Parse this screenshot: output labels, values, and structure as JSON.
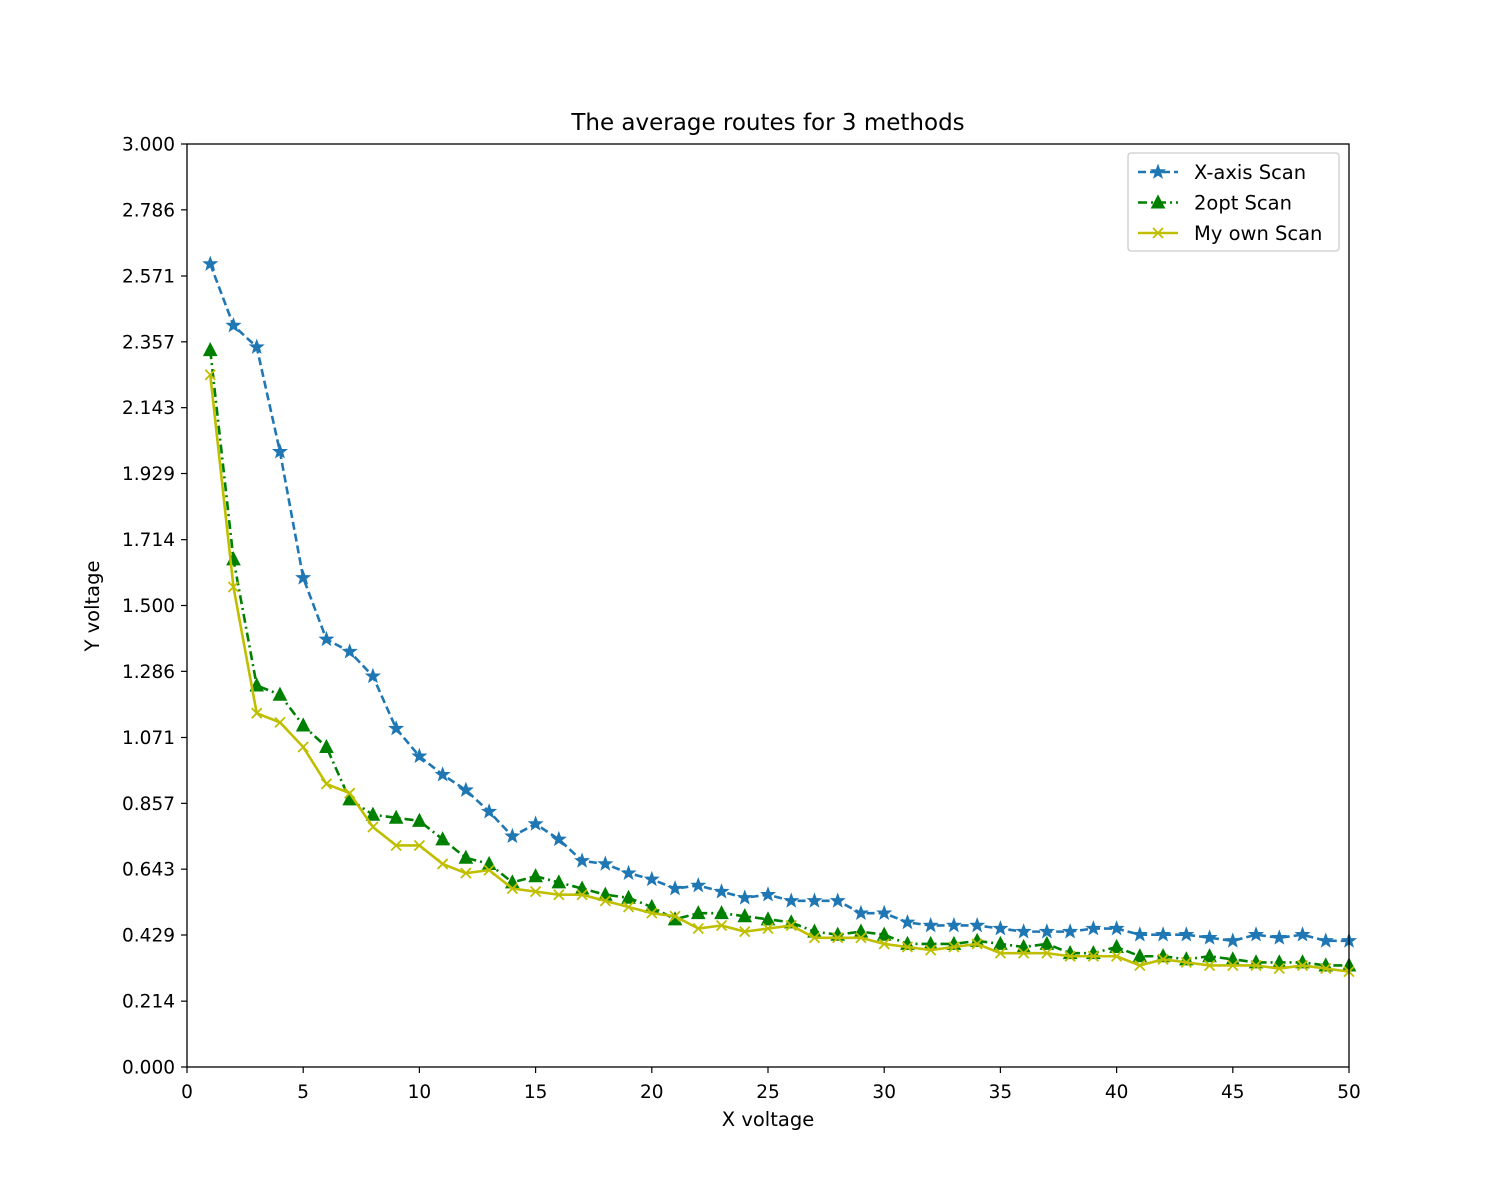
{
  "chart_data": {
    "type": "line",
    "title": "The average routes for 3 methods",
    "xlabel": "X voltage",
    "ylabel": "Y voltage",
    "xlim": [
      0,
      50
    ],
    "ylim": [
      0,
      3.0
    ],
    "x_ticks": [
      0,
      5,
      10,
      15,
      20,
      25,
      30,
      35,
      40,
      45,
      50
    ],
    "x_tick_labels": [
      "0",
      "5",
      "10",
      "15",
      "20",
      "25",
      "30",
      "35",
      "40",
      "45",
      "50"
    ],
    "y_ticks": [
      0,
      0.214,
      0.429,
      0.643,
      0.857,
      1.071,
      1.286,
      1.5,
      1.714,
      1.929,
      2.143,
      2.357,
      2.571,
      2.786,
      3.0
    ],
    "y_tick_labels": [
      "0.000",
      "0.214",
      "0.429",
      "0.643",
      "0.857",
      "1.071",
      "1.286",
      "1.500",
      "1.714",
      "1.929",
      "2.143",
      "2.357",
      "2.571",
      "2.786",
      "3.000"
    ],
    "grid": false,
    "legend_position": "top-right",
    "x": [
      1,
      2,
      3,
      4,
      5,
      6,
      7,
      8,
      9,
      10,
      11,
      12,
      13,
      14,
      15,
      16,
      17,
      18,
      19,
      20,
      21,
      22,
      23,
      24,
      25,
      26,
      27,
      28,
      29,
      30,
      31,
      32,
      33,
      34,
      35,
      36,
      37,
      38,
      39,
      40,
      41,
      42,
      43,
      44,
      45,
      46,
      47,
      48,
      49,
      50
    ],
    "series": [
      {
        "name": "X-axis Scan",
        "color": "#1f77b4",
        "linestyle": "dashed",
        "marker": "star",
        "values": [
          2.61,
          2.41,
          2.34,
          2.0,
          1.59,
          1.39,
          1.35,
          1.27,
          1.1,
          1.01,
          0.95,
          0.9,
          0.83,
          0.75,
          0.79,
          0.74,
          0.67,
          0.66,
          0.63,
          0.61,
          0.58,
          0.59,
          0.57,
          0.55,
          0.56,
          0.54,
          0.54,
          0.54,
          0.5,
          0.5,
          0.47,
          0.46,
          0.46,
          0.46,
          0.45,
          0.44,
          0.44,
          0.44,
          0.45,
          0.45,
          0.43,
          0.43,
          0.43,
          0.42,
          0.41,
          0.43,
          0.42,
          0.43,
          0.41,
          0.41
        ]
      },
      {
        "name": "2opt Scan",
        "color": "#008000",
        "linestyle": "dashdot",
        "marker": "triangle",
        "values": [
          2.33,
          1.65,
          1.24,
          1.21,
          1.11,
          1.04,
          0.87,
          0.82,
          0.81,
          0.8,
          0.74,
          0.68,
          0.66,
          0.6,
          0.62,
          0.6,
          0.58,
          0.56,
          0.55,
          0.52,
          0.48,
          0.5,
          0.5,
          0.49,
          0.48,
          0.47,
          0.44,
          0.43,
          0.44,
          0.43,
          0.4,
          0.4,
          0.4,
          0.41,
          0.4,
          0.39,
          0.4,
          0.37,
          0.37,
          0.39,
          0.36,
          0.36,
          0.35,
          0.36,
          0.35,
          0.34,
          0.34,
          0.34,
          0.33,
          0.33
        ]
      },
      {
        "name": "My own Scan",
        "color": "#bfbf00",
        "linestyle": "solid",
        "marker": "x",
        "values": [
          2.25,
          1.56,
          1.15,
          1.12,
          1.04,
          0.92,
          0.89,
          0.78,
          0.72,
          0.72,
          0.66,
          0.63,
          0.64,
          0.58,
          0.57,
          0.56,
          0.56,
          0.54,
          0.52,
          0.5,
          0.49,
          0.45,
          0.46,
          0.44,
          0.45,
          0.46,
          0.42,
          0.42,
          0.42,
          0.4,
          0.39,
          0.38,
          0.39,
          0.4,
          0.37,
          0.37,
          0.37,
          0.36,
          0.36,
          0.36,
          0.33,
          0.35,
          0.34,
          0.33,
          0.33,
          0.33,
          0.32,
          0.33,
          0.32,
          0.31
        ]
      }
    ]
  }
}
